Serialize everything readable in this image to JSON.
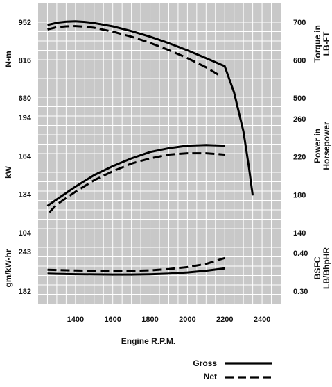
{
  "chart_data": {
    "type": "line",
    "xlabel": "Engine R.P.M.",
    "x_ticks": [
      1400,
      1600,
      1800,
      2000,
      2200,
      2400
    ],
    "xlim": [
      1200,
      2500
    ],
    "grid": true,
    "legend": {
      "placement": "bottom-right",
      "entries": [
        {
          "label": "Gross",
          "style": "solid"
        },
        {
          "label": "Net",
          "style": "dashed"
        }
      ]
    },
    "panels": [
      {
        "name": "torque",
        "left_label": "N•m",
        "left_ticks": [
          952,
          816,
          680
        ],
        "right_label_lines": [
          "Torque in",
          "LB-FT"
        ],
        "right_ticks": [
          700,
          600,
          500
        ],
        "ylim_left": [
          680,
          952
        ],
        "series": [
          {
            "name": "Gross",
            "style": "solid",
            "x": [
              1250,
              1300,
              1350,
              1400,
              1450,
              1500,
              1600,
              1700,
              1800,
              1900,
              2000,
              2100,
              2200,
              2250,
              2300,
              2330,
              2350
            ],
            "y": [
              942,
              950,
              954,
              955,
              953,
              949,
              937,
              920,
              900,
              877,
              851,
              823,
              794,
              700,
              560,
              430,
              330
            ]
          },
          {
            "name": "Net",
            "style": "dashed",
            "x": [
              1250,
              1300,
              1350,
              1400,
              1450,
              1500,
              1600,
              1700,
              1800,
              1900,
              2000,
              2100,
              2180
            ],
            "y": [
              926,
              934,
              937,
              938,
              936,
              932,
              918,
              900,
              878,
              852,
              823,
              790,
              758
            ]
          }
        ]
      },
      {
        "name": "power",
        "left_label": "kW",
        "left_ticks": [
          194,
          164,
          134,
          104
        ],
        "right_label_lines": [
          "Power in",
          "Horsepower"
        ],
        "right_ticks": [
          260,
          220,
          180,
          140
        ],
        "ylim_left": [
          104,
          194
        ],
        "series": [
          {
            "name": "Gross",
            "style": "solid",
            "x": [
              1250,
              1300,
              1400,
              1500,
              1600,
              1700,
              1800,
              1900,
              2000,
              2100,
              2200
            ],
            "y": [
              125,
              130,
              140,
              149,
              156,
              162,
              167,
              170,
              172,
              172.5,
              172
            ]
          },
          {
            "name": "Net",
            "style": "dashed",
            "x": [
              1260,
              1300,
              1400,
              1500,
              1600,
              1700,
              1800,
              1900,
              2000,
              2100,
              2200
            ],
            "y": [
              120,
              126,
              136,
              145,
              152,
              158,
              162,
              165,
              166,
              166,
              165
            ]
          }
        ]
      },
      {
        "name": "bsfc",
        "left_label": "gm/kW-hr",
        "left_ticks": [
          243,
          182
        ],
        "right_label_lines": [
          "BSFC",
          "LB/BhpHR"
        ],
        "right_ticks": [
          "0.40",
          "0.30"
        ],
        "ylim_left": [
          182,
          243
        ],
        "series": [
          {
            "name": "Gross",
            "style": "solid",
            "x": [
              1250,
              1300,
              1400,
              1500,
              1600,
              1700,
              1800,
              1900,
              2000,
              2100,
              2200
            ],
            "y": [
              209,
              208.6,
              208.1,
              207.8,
              207.6,
              207.6,
              208,
              209,
              210.8,
              213.5,
              217
            ]
          },
          {
            "name": "Net",
            "style": "dashed",
            "x": [
              1250,
              1300,
              1400,
              1500,
              1600,
              1700,
              1800,
              1900,
              2000,
              2100,
              2200
            ],
            "y": [
              215,
              214.5,
              213.8,
              213.3,
              213.1,
              213.2,
              214,
              216,
              219,
              224,
              233
            ]
          }
        ]
      }
    ]
  }
}
